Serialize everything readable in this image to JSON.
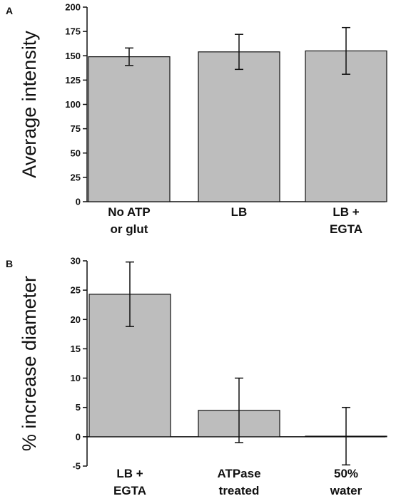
{
  "chart_data": [
    {
      "panel_label": "A",
      "type": "bar",
      "categories": [
        [
          "No ATP",
          "or glut"
        ],
        [
          "LB"
        ],
        [
          "LB +",
          "EGTA"
        ]
      ],
      "values": [
        149,
        154,
        155
      ],
      "errors": [
        9,
        18,
        24
      ],
      "ylabel": "Average intensity",
      "xlabel": "",
      "title": "",
      "ylim": [
        0,
        200
      ],
      "yticks": [
        0,
        25,
        50,
        75,
        100,
        125,
        150,
        175,
        200
      ],
      "bar_color": "#bdbdbd",
      "grid": false
    },
    {
      "panel_label": "B",
      "type": "bar",
      "categories": [
        [
          "LB +",
          "EGTA"
        ],
        [
          "ATPase",
          "treated"
        ],
        [
          "50%",
          "water"
        ]
      ],
      "values": [
        24.3,
        4.5,
        0.1
      ],
      "errors": [
        5.5,
        5.5,
        4.9
      ],
      "ylabel": "% increase diameter",
      "xlabel": "",
      "title": "",
      "ylim": [
        -5,
        30
      ],
      "yticks": [
        -5,
        0,
        5,
        10,
        15,
        20,
        25,
        30
      ],
      "bar_color": "#bdbdbd",
      "grid": false
    }
  ]
}
